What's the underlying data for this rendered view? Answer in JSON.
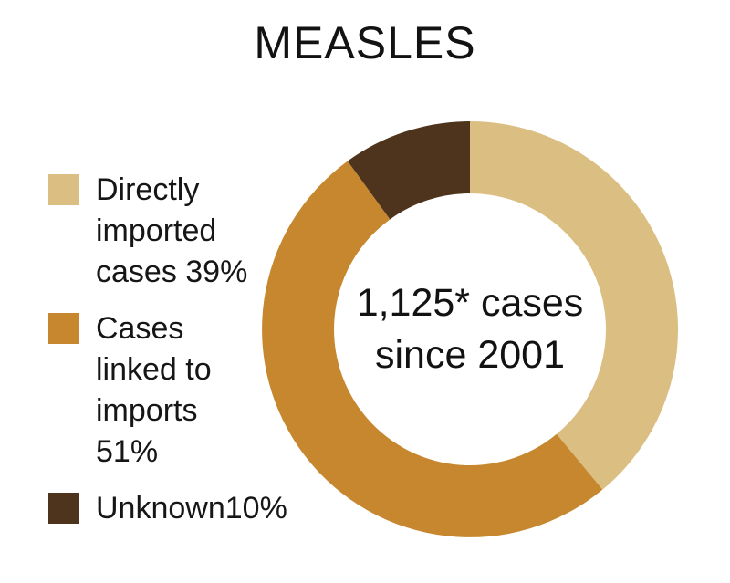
{
  "title": "MEASLES",
  "center_label": {
    "line1": "1,125* cases",
    "line2": "since 2001"
  },
  "legend": {
    "items": [
      {
        "label": "Directly imported cases 39%",
        "color": "#DBBE81"
      },
      {
        "label": "Cases linked to imports 51%",
        "color": "#C6872F"
      },
      {
        "label": "Unknown10%",
        "color": "#4E341C"
      }
    ]
  },
  "chart_data": {
    "type": "pie",
    "subtype": "donut",
    "title": "MEASLES",
    "labels": [
      "Directly imported cases",
      "Cases linked to imports",
      "Unknown"
    ],
    "values": [
      39,
      51,
      10
    ],
    "unit": "%",
    "colors": [
      "#DBBE81",
      "#C6872F",
      "#4E341C"
    ],
    "start_angle_deg": 0,
    "direction": "clockwise",
    "inner_radius_ratio": 0.653,
    "center_text": "1,125* cases since 2001",
    "legend_position": "left",
    "grid": false
  }
}
